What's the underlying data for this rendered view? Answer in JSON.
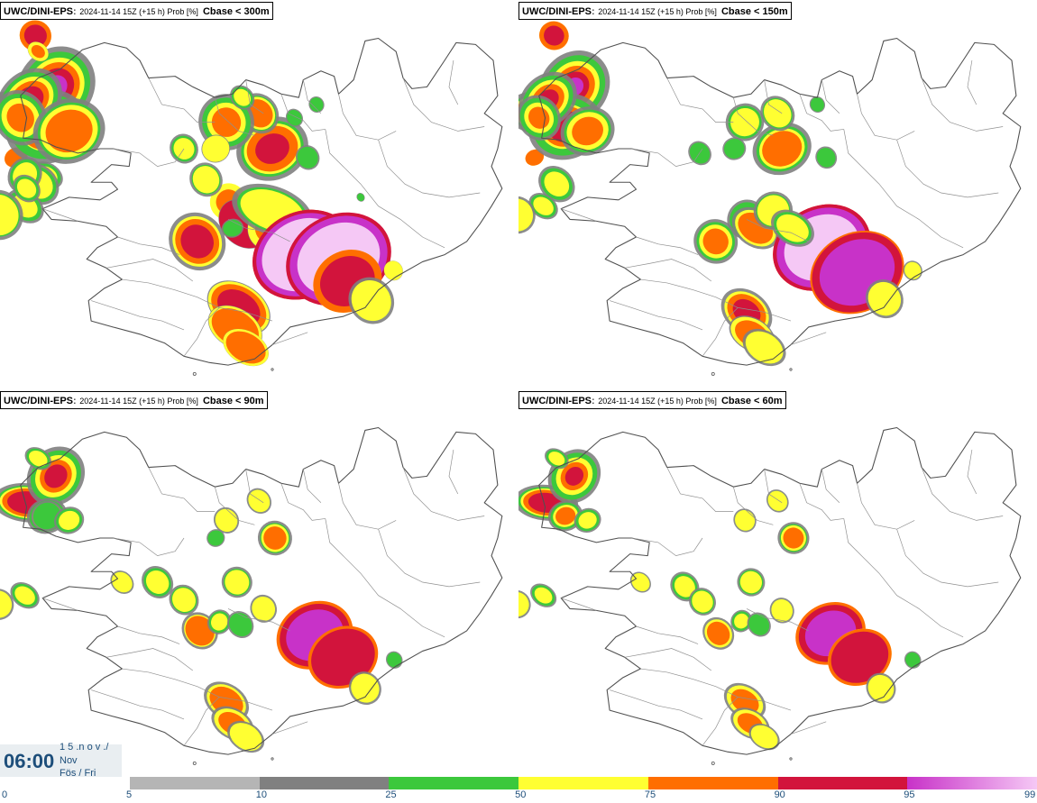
{
  "panels": [
    {
      "model": "UWC/DINI-EPS",
      "meta": "2024-11-14 15Z (+15 h) Prob [%]",
      "variable": "Cbase < 300m"
    },
    {
      "model": "UWC/DINI-EPS",
      "meta": "2024-11-14 15Z (+15 h) Prob [%]",
      "variable": "Cbase < 150m"
    },
    {
      "model": "UWC/DINI-EPS",
      "meta": "2024-11-14 15Z (+15 h) Prob [%]",
      "variable": "Cbase < 90m"
    },
    {
      "model": "UWC/DINI-EPS",
      "meta": "2024-11-14 15Z (+15 h) Prob [%]",
      "variable": "Cbase < 60m"
    }
  ],
  "valid_time": {
    "time": "06:00",
    "date_line1": "1 5 .n o v ./",
    "date_line2": "Nov",
    "date_line3": "Fös / Fri"
  },
  "colorbar": {
    "ticks": [
      "0",
      "5",
      "10",
      "25",
      "50",
      "75",
      "90",
      "95",
      "99"
    ],
    "colors": [
      "#b5b5b5",
      "#808080",
      "#3cc83c",
      "#ffff32",
      "#ff6e00",
      "#d2143c",
      "#c832c8"
    ],
    "last_gradient_to": "#f5c8f5"
  },
  "colors": {
    "coast": "#505050",
    "text": "#1d4e7a"
  }
}
